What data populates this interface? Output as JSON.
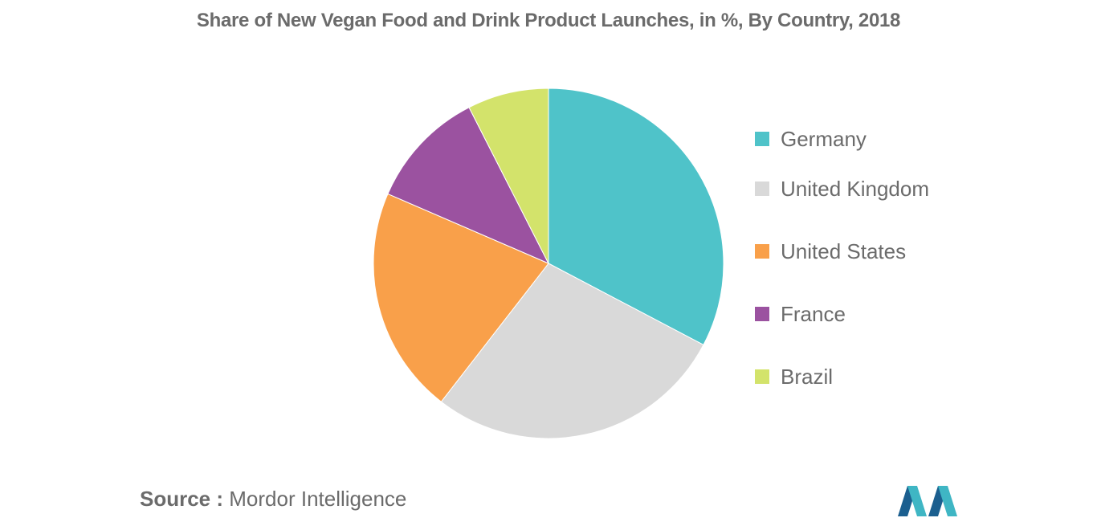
{
  "chart_data": {
    "type": "pie",
    "title": "Share of New Vegan Food and Drink Product Launches, in %, By Country, 2018",
    "categories": [
      "Germany",
      "United Kingdom",
      "United States",
      "France",
      "Brazil"
    ],
    "values": [
      32.7,
      27.8,
      21.0,
      11.0,
      7.5
    ],
    "unit": "%",
    "legend_position": "right",
    "colors": [
      "#4fc3c9",
      "#d9d9d9",
      "#f9a04a",
      "#9b52a0",
      "#d3e36b"
    ]
  },
  "source": {
    "label": "Source :",
    "text": "Mordor Intelligence"
  },
  "logo": {
    "icon": "mordor-intelligence-logo",
    "colors": [
      "#1b5f8f",
      "#3fb6c4"
    ]
  }
}
